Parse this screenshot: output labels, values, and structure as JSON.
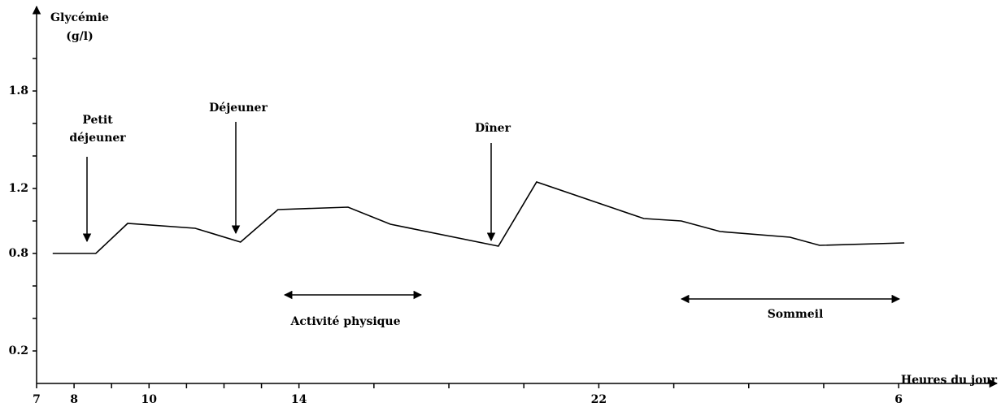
{
  "chart_data": {
    "type": "line",
    "y_label": [
      "Glycémie",
      "(g/l)"
    ],
    "x_label": "Heures du jour",
    "x": [
      7.43,
      8.58,
      9.43,
      11.23,
      12.44,
      13.44,
      15.31,
      16.44,
      19.32,
      20.34,
      23.2,
      24.2,
      25.24,
      27.1,
      27.89,
      30.15
    ],
    "series": [
      {
        "color": "#000000",
        "values": [
          0.8,
          0.8,
          0.985,
          0.955,
          0.87,
          1.07,
          1.085,
          0.98,
          0.845,
          1.24,
          1.015,
          1.0,
          0.935,
          0.9,
          0.85,
          0.865
        ]
      }
    ],
    "xlim": [
      7,
      32.6
    ],
    "ylim": [
      0,
      2.1
    ],
    "xticks": [
      7,
      8,
      10,
      14,
      22,
      {
        "value": 30,
        "label": "6"
      }
    ],
    "x_minor_ticks": [
      9,
      11,
      12,
      13,
      16,
      18,
      20,
      24,
      26,
      28
    ],
    "yticks": [
      0.2,
      0.8,
      1.2,
      1.8
    ],
    "y_minor_ticks": [
      0.4,
      0.6,
      1.0,
      1.4,
      1.6,
      2.0
    ],
    "annotations": [
      [
        "Petit",
        "déjeuner"
      ],
      [
        "Déjeuner"
      ],
      [
        "Dîner"
      ],
      [
        "Activité physique"
      ],
      [
        "Sommeil"
      ]
    ]
  }
}
